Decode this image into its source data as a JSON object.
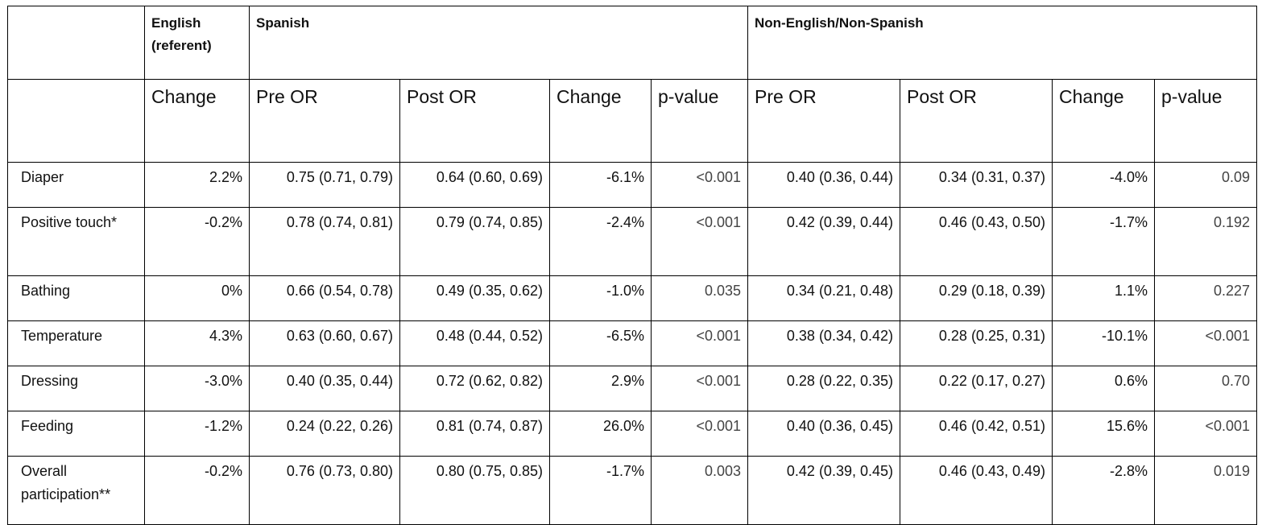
{
  "groups": {
    "english": "English (referent)",
    "spanish": "Spanish",
    "other": "Non-English/Non-Spanish"
  },
  "subheaders": {
    "change": "Change",
    "pre_or": "Pre OR",
    "post_or": "Post OR",
    "p_value": "p-value"
  },
  "rows": [
    {
      "label": "Diaper",
      "eng_change": "2.2%",
      "sp_pre": "0.75 (0.71, 0.79)",
      "sp_post": "0.64 (0.60, 0.69)",
      "sp_change": "-6.1%",
      "sp_p": "<0.001",
      "ot_pre": "0.40 (0.36, 0.44)",
      "ot_post": "0.34 (0.31, 0.37)",
      "ot_change": "-4.0%",
      "ot_p": "0.09"
    },
    {
      "label": "Positive touch*",
      "eng_change": "-0.2%",
      "sp_pre": "0.78 (0.74, 0.81)",
      "sp_post": "0.79 (0.74, 0.85)",
      "sp_change": "-2.4%",
      "sp_p": "<0.001",
      "ot_pre": "0.42 (0.39, 0.44)",
      "ot_post": "0.46 (0.43, 0.50)",
      "ot_change": "-1.7%",
      "ot_p": "0.192"
    },
    {
      "label": "Bathing",
      "eng_change": "0%",
      "sp_pre": "0.66 (0.54, 0.78)",
      "sp_post": "0.49 (0.35, 0.62)",
      "sp_change": "-1.0%",
      "sp_p": "0.035",
      "ot_pre": "0.34 (0.21, 0.48)",
      "ot_post": "0.29 (0.18, 0.39)",
      "ot_change": "1.1%",
      "ot_p": "0.227"
    },
    {
      "label": "Temperature",
      "eng_change": "4.3%",
      "sp_pre": "0.63 (0.60, 0.67)",
      "sp_post": "0.48 (0.44, 0.52)",
      "sp_change": "-6.5%",
      "sp_p": "<0.001",
      "ot_pre": "0.38 (0.34, 0.42)",
      "ot_post": "0.28 (0.25, 0.31)",
      "ot_change": "-10.1%",
      "ot_p": "<0.001"
    },
    {
      "label": "Dressing",
      "eng_change": "-3.0%",
      "sp_pre": "0.40 (0.35, 0.44)",
      "sp_post": "0.72 (0.62, 0.82)",
      "sp_change": "2.9%",
      "sp_p": "<0.001",
      "ot_pre": "0.28 (0.22, 0.35)",
      "ot_post": "0.22 (0.17, 0.27)",
      "ot_change": "0.6%",
      "ot_p": "0.70"
    },
    {
      "label": "Feeding",
      "eng_change": "-1.2%",
      "sp_pre": "0.24 (0.22, 0.26)",
      "sp_post": "0.81 (0.74, 0.87)",
      "sp_change": "26.0%",
      "sp_p": "<0.001",
      "ot_pre": "0.40 (0.36, 0.45)",
      "ot_post": "0.46 (0.42, 0.51)",
      "ot_change": "15.6%",
      "ot_p": "<0.001"
    },
    {
      "label": "Overall participation**",
      "eng_change": "-0.2%",
      "sp_pre": "0.76 (0.73, 0.80)",
      "sp_post": "0.80 (0.75, 0.85)",
      "sp_change": "-1.7%",
      "sp_p": "0.003",
      "ot_pre": "0.42 (0.39, 0.45)",
      "ot_post": "0.46 (0.43, 0.49)",
      "ot_change": "-2.8%",
      "ot_p": "0.019"
    }
  ]
}
